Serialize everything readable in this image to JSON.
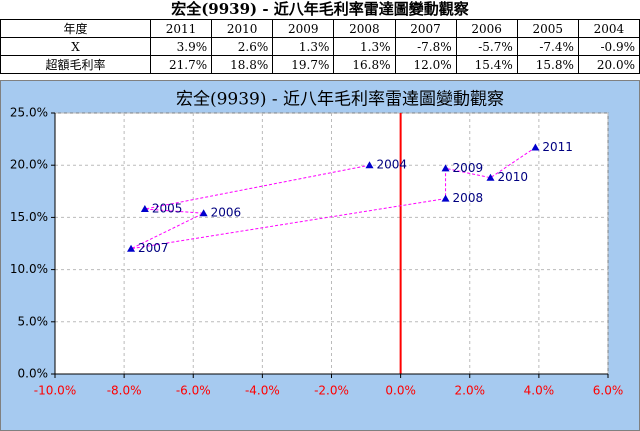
{
  "table": {
    "title": "宏全(9939) - 近八年毛利率雷達圖變動觀察",
    "header": [
      "年度",
      "2011",
      "2010",
      "2009",
      "2008",
      "2007",
      "2006",
      "2005",
      "2004"
    ],
    "rows": [
      [
        "X",
        "3.9%",
        "2.6%",
        "1.3%",
        "1.3%",
        "-7.8%",
        "-5.7%",
        "-7.4%",
        "-0.9%"
      ],
      [
        "超額毛利率",
        "21.7%",
        "18.8%",
        "19.7%",
        "16.8%",
        "12.0%",
        "15.4%",
        "15.8%",
        "20.0%"
      ]
    ]
  },
  "chart_data": {
    "type": "scatter",
    "title": "宏全(9939) - 近八年毛利率雷達圖變動觀察",
    "labels": [
      "2011",
      "2010",
      "2009",
      "2008",
      "2007",
      "2006",
      "2005",
      "2004"
    ],
    "x": [
      3.9,
      2.6,
      1.3,
      1.3,
      -7.8,
      -5.7,
      -7.4,
      -0.9
    ],
    "y": [
      21.7,
      18.8,
      19.7,
      16.8,
      12.0,
      15.4,
      15.8,
      20.0
    ],
    "marker_color": "#0000cc",
    "line_color": "#ff00ff",
    "zero_line_color": "#ff0000",
    "xtick_color": "#ff0000",
    "xlim": [
      -10,
      6
    ],
    "xticks": [
      {
        "value": -10,
        "label": "-10.0%"
      },
      {
        "value": -8,
        "label": "-8.0%"
      },
      {
        "value": -6,
        "label": "-6.0%"
      },
      {
        "value": -4,
        "label": "-4.0%"
      },
      {
        "value": -2,
        "label": "-2.0%"
      },
      {
        "value": 0,
        "label": "0.0%"
      },
      {
        "value": 2,
        "label": "2.0%"
      },
      {
        "value": 4,
        "label": "4.0%"
      },
      {
        "value": 6,
        "label": "6.0%"
      }
    ],
    "ylim": [
      0,
      25
    ],
    "yticks": [
      {
        "value": 0,
        "label": "0.0%"
      },
      {
        "value": 5,
        "label": "5.0%"
      },
      {
        "value": 10,
        "label": "10.0%"
      },
      {
        "value": 15,
        "label": "15.0%"
      },
      {
        "value": 20,
        "label": "20.0%"
      },
      {
        "value": 25,
        "label": "25.0%"
      }
    ],
    "grid": true
  }
}
